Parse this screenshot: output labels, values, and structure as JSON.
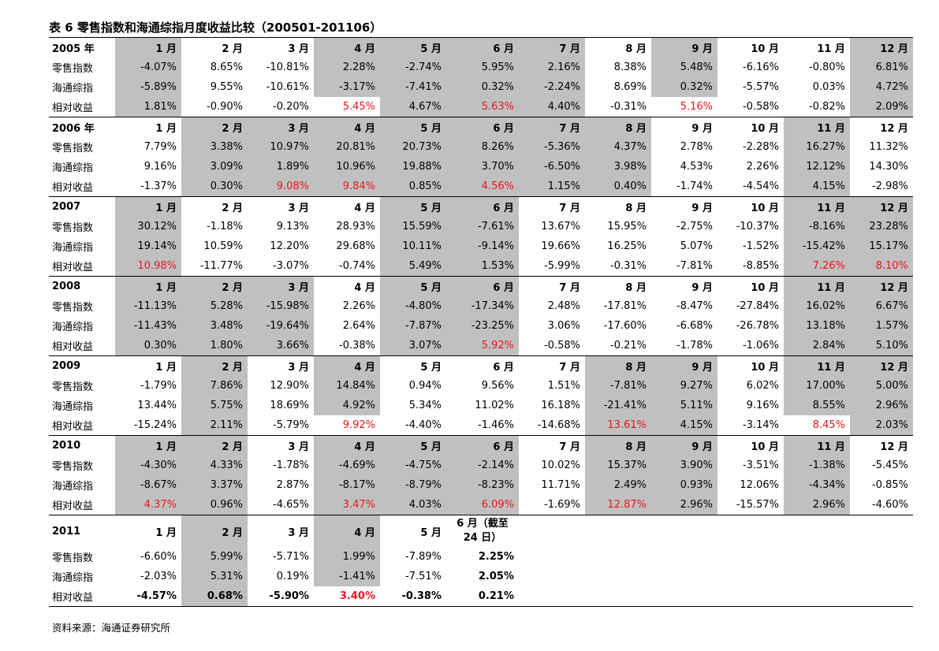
{
  "title": "表 6 零售指数和海通综指月度收益比较（200501-201106）",
  "source": "资料来源：海通证券研究所",
  "row_labels": [
    "零售指数",
    "海通综指",
    "相对收益"
  ],
  "months": [
    "1 月",
    "2 月",
    "3 月",
    "4 月",
    "5 月",
    "6 月",
    "7 月",
    "8 月",
    "9 月",
    "10 月",
    "11 月",
    "12 月"
  ],
  "years": [
    {
      "label": "2005 年",
      "header_gray": [
        1,
        0,
        0,
        1,
        1,
        1,
        1,
        0,
        1,
        0,
        0,
        1
      ],
      "rows": [
        [
          "-4.07%",
          "8.65%",
          "-10.81%",
          "2.28%",
          "-2.74%",
          "5.95%",
          "2.16%",
          "8.38%",
          "5.48%",
          "-6.16%",
          "-0.80%",
          "6.81%"
        ],
        [
          "-5.89%",
          "9.55%",
          "-10.61%",
          "-3.17%",
          "-7.41%",
          "0.32%",
          "-2.24%",
          "8.69%",
          "0.32%",
          "-5.57%",
          "0.03%",
          "4.72%"
        ],
        [
          "1.81%",
          "-0.90%",
          "-0.20%",
          "5.45%",
          "4.67%",
          "5.63%",
          "4.40%",
          "-0.31%",
          "5.16%",
          "-0.58%",
          "-0.82%",
          "2.09%"
        ]
      ],
      "red": [
        3,
        5,
        8
      ]
    },
    {
      "label": "2006 年",
      "header_gray": [
        0,
        1,
        1,
        1,
        1,
        1,
        1,
        1,
        0,
        0,
        1,
        0
      ],
      "rows": [
        [
          "7.79%",
          "3.38%",
          "10.97%",
          "20.81%",
          "20.73%",
          "8.26%",
          "-5.36%",
          "4.37%",
          "2.78%",
          "-2.28%",
          "16.27%",
          "11.32%"
        ],
        [
          "9.16%",
          "3.09%",
          "1.89%",
          "10.96%",
          "19.88%",
          "3.70%",
          "-6.50%",
          "3.98%",
          "4.53%",
          "2.26%",
          "12.12%",
          "14.30%"
        ],
        [
          "-1.37%",
          "0.30%",
          "9.08%",
          "9.84%",
          "0.85%",
          "4.56%",
          "1.15%",
          "0.40%",
          "-1.74%",
          "-4.54%",
          "4.15%",
          "-2.98%"
        ]
      ],
      "red": [
        2,
        3,
        5
      ]
    },
    {
      "label": "2007",
      "header_gray": [
        1,
        0,
        0,
        0,
        1,
        1,
        0,
        0,
        0,
        0,
        1,
        1
      ],
      "rows": [
        [
          "30.12%",
          "-1.18%",
          "9.13%",
          "28.93%",
          "15.59%",
          "-7.61%",
          "13.67%",
          "15.95%",
          "-2.75%",
          "-10.37%",
          "-8.16%",
          "23.28%"
        ],
        [
          "19.14%",
          "10.59%",
          "12.20%",
          "29.68%",
          "10.11%",
          "-9.14%",
          "19.66%",
          "16.25%",
          "5.07%",
          "-1.52%",
          "-15.42%",
          "15.17%"
        ],
        [
          "10.98%",
          "-11.77%",
          "-3.07%",
          "-0.74%",
          "5.49%",
          "1.53%",
          "-5.99%",
          "-0.31%",
          "-7.81%",
          "-8.85%",
          "7.26%",
          "8.10%"
        ]
      ],
      "red": [
        0,
        10,
        11
      ]
    },
    {
      "label": "2008",
      "header_gray": [
        1,
        1,
        1,
        0,
        1,
        1,
        0,
        0,
        0,
        0,
        1,
        1
      ],
      "rows": [
        [
          "-11.13%",
          "5.28%",
          "-15.98%",
          "2.26%",
          "-4.80%",
          "-17.34%",
          "2.48%",
          "-17.81%",
          "-8.47%",
          "-27.84%",
          "16.02%",
          "6.67%"
        ],
        [
          "-11.43%",
          "3.48%",
          "-19.64%",
          "2.64%",
          "-7.87%",
          "-23.25%",
          "3.06%",
          "-17.60%",
          "-6.68%",
          "-26.78%",
          "13.18%",
          "1.57%"
        ],
        [
          "0.30%",
          "1.80%",
          "3.66%",
          "-0.38%",
          "3.07%",
          "5.92%",
          "-0.58%",
          "-0.21%",
          "-1.78%",
          "-1.06%",
          "2.84%",
          "5.10%"
        ]
      ],
      "red": [
        5
      ]
    },
    {
      "label": "2009",
      "header_gray": [
        0,
        1,
        0,
        1,
        0,
        0,
        0,
        1,
        1,
        0,
        1,
        1
      ],
      "rows": [
        [
          "-1.79%",
          "7.86%",
          "12.90%",
          "14.84%",
          "0.94%",
          "9.56%",
          "1.51%",
          "-7.81%",
          "9.27%",
          "6.02%",
          "17.00%",
          "5.00%"
        ],
        [
          "13.44%",
          "5.75%",
          "18.69%",
          "4.92%",
          "5.34%",
          "11.02%",
          "16.18%",
          "-21.41%",
          "5.11%",
          "9.16%",
          "8.55%",
          "2.96%"
        ],
        [
          "-15.24%",
          "2.11%",
          "-5.79%",
          "9.92%",
          "-4.40%",
          "-1.46%",
          "-14.68%",
          "13.61%",
          "4.15%",
          "-3.14%",
          "8.45%",
          "2.03%"
        ]
      ],
      "red": [
        3,
        7,
        10
      ]
    },
    {
      "label": "2010",
      "header_gray": [
        1,
        1,
        0,
        1,
        1,
        1,
        0,
        1,
        1,
        0,
        1,
        0
      ],
      "rows": [
        [
          "-4.30%",
          "4.33%",
          "-1.78%",
          "-4.69%",
          "-4.75%",
          "-2.14%",
          "10.02%",
          "15.37%",
          "3.90%",
          "-3.51%",
          "-1.38%",
          "-5.45%"
        ],
        [
          "-8.67%",
          "3.37%",
          "2.87%",
          "-8.17%",
          "-8.79%",
          "-8.23%",
          "11.71%",
          "2.49%",
          "0.93%",
          "12.06%",
          "-4.34%",
          "-0.85%"
        ],
        [
          "4.37%",
          "0.96%",
          "-4.65%",
          "3.47%",
          "4.03%",
          "6.09%",
          "-1.69%",
          "12.87%",
          "2.96%",
          "-15.57%",
          "2.96%",
          "-4.60%"
        ]
      ],
      "red": [
        0,
        3,
        5,
        7
      ]
    },
    {
      "label": "2011",
      "months": [
        "1 月",
        "2 月",
        "3 月",
        "4 月",
        "5 月",
        "6 月（截至 24 日）"
      ],
      "header_gray": [
        0,
        1,
        0,
        1,
        0,
        0
      ],
      "rows": [
        [
          "-6.60%",
          "5.99%",
          "-5.71%",
          "1.99%",
          "-7.89%",
          "2.25%"
        ],
        [
          "-2.03%",
          "5.31%",
          "0.19%",
          "-1.41%",
          "-7.51%",
          "2.05%"
        ],
        [
          "-4.57%",
          "0.68%",
          "-5.90%",
          "3.40%",
          "-0.38%",
          "0.21%"
        ]
      ],
      "red": [
        3
      ]
    }
  ],
  "colors": {
    "gray": "#c0c0c0",
    "red": "#e8171e"
  }
}
